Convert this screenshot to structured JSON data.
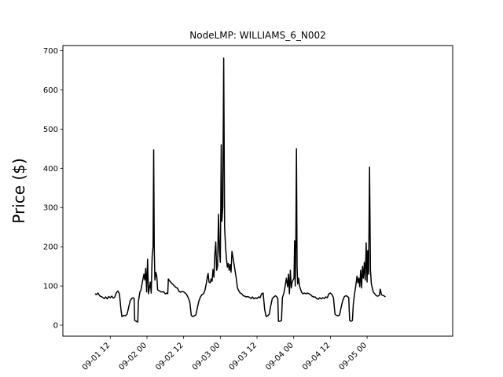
{
  "chart_data": {
    "type": "line",
    "title": "NodeLMP: WILLIAMS_6_N002",
    "xlabel": "",
    "ylabel": "Price ($)",
    "ylim": [
      -28,
      713
    ],
    "xlim_hours": [
      -15.5,
      112
    ],
    "yticks": [
      0,
      100,
      200,
      300,
      400,
      500,
      600,
      700
    ],
    "xticks": [
      {
        "hour": 0,
        "label": "09-01 12"
      },
      {
        "hour": 12,
        "label": "09-02 00"
      },
      {
        "hour": 24,
        "label": "09-02 12"
      },
      {
        "hour": 36,
        "label": "09-03 00"
      },
      {
        "hour": 48,
        "label": "09-03 12"
      },
      {
        "hour": 60,
        "label": "09-04 00"
      },
      {
        "hour": 72,
        "label": "09-04 12"
      },
      {
        "hour": 84,
        "label": "09-05 00"
      }
    ],
    "series": [
      {
        "name": "WILLIAMS_6_N002",
        "color": "#000000",
        "points": [
          [
            -5,
            80
          ],
          [
            -4.5,
            78
          ],
          [
            -4,
            82
          ],
          [
            -3.5,
            75
          ],
          [
            -3,
            73
          ],
          [
            -2.5,
            71
          ],
          [
            -2,
            68
          ],
          [
            -1.5,
            72
          ],
          [
            -1,
            67
          ],
          [
            -0.5,
            73
          ],
          [
            0,
            70
          ],
          [
            0.5,
            74
          ],
          [
            1,
            69
          ],
          [
            1.5,
            72
          ],
          [
            2,
            83
          ],
          [
            2.5,
            87
          ],
          [
            3,
            80
          ],
          [
            3.5,
            40
          ],
          [
            3.8,
            22
          ],
          [
            4.5,
            25
          ],
          [
            5,
            24
          ],
          [
            5.5,
            28
          ],
          [
            6,
            45
          ],
          [
            6.5,
            62
          ],
          [
            7,
            68
          ],
          [
            7.5,
            70
          ],
          [
            7.8,
            68
          ],
          [
            8,
            12
          ],
          [
            8.5,
            10
          ],
          [
            9,
            8
          ],
          [
            9.2,
            60
          ],
          [
            9.7,
            85
          ],
          [
            10,
            88
          ],
          [
            10.5,
            110
          ],
          [
            11,
            130
          ],
          [
            11.3,
            115
          ],
          [
            11.6,
            145
          ],
          [
            11.9,
            85
          ],
          [
            12.2,
            168
          ],
          [
            12.5,
            80
          ],
          [
            12.8,
            95
          ],
          [
            13.1,
            110
          ],
          [
            13.4,
            82
          ],
          [
            13.7,
            175
          ],
          [
            14,
            200
          ],
          [
            14.2,
            447
          ],
          [
            14.4,
            190
          ],
          [
            14.6,
            115
          ],
          [
            14.9,
            135
          ],
          [
            15.2,
            125
          ],
          [
            15.5,
            90
          ],
          [
            16,
            88
          ],
          [
            16.5,
            85
          ],
          [
            17,
            85
          ],
          [
            17.5,
            85
          ],
          [
            18,
            80
          ],
          [
            18.5,
            82
          ],
          [
            18.8,
            80
          ],
          [
            19,
            118
          ],
          [
            19.5,
            112
          ],
          [
            20,
            108
          ],
          [
            20.5,
            104
          ],
          [
            21,
            100
          ],
          [
            21.5,
            96
          ],
          [
            22,
            94
          ],
          [
            22.5,
            86
          ],
          [
            23,
            84
          ],
          [
            23.5,
            86
          ],
          [
            24,
            85
          ],
          [
            24.5,
            82
          ],
          [
            25,
            78
          ],
          [
            25.5,
            70
          ],
          [
            26,
            60
          ],
          [
            26.5,
            25
          ],
          [
            27,
            22
          ],
          [
            27.5,
            24
          ],
          [
            28,
            26
          ],
          [
            28.5,
            45
          ],
          [
            29,
            62
          ],
          [
            29.5,
            72
          ],
          [
            30,
            78
          ],
          [
            30.5,
            80
          ],
          [
            31,
            90
          ],
          [
            31.5,
            110
          ],
          [
            31.8,
            125
          ],
          [
            32,
            132
          ],
          [
            32.3,
            110
          ],
          [
            32.7,
            108
          ],
          [
            33,
            118
          ],
          [
            33.3,
            112
          ],
          [
            33.6,
            142
          ],
          [
            33.9,
            122
          ],
          [
            34.2,
            180
          ],
          [
            34.5,
            212
          ],
          [
            34.8,
            140
          ],
          [
            35.1,
            150
          ],
          [
            35.4,
            283
          ],
          [
            35.7,
            190
          ],
          [
            36,
            160
          ],
          [
            36.3,
            460
          ],
          [
            36.5,
            265
          ],
          [
            36.8,
            300
          ],
          [
            37.1,
            681
          ],
          [
            37.4,
            250
          ],
          [
            37.7,
            200
          ],
          [
            38,
            170
          ],
          [
            38.3,
            148
          ],
          [
            38.6,
            157
          ],
          [
            38.9,
            140
          ],
          [
            39.2,
            155
          ],
          [
            39.5,
            135
          ],
          [
            39.8,
            188
          ],
          [
            40.1,
            175
          ],
          [
            40.4,
            160
          ],
          [
            40.8,
            140
          ],
          [
            41.2,
            120
          ],
          [
            41.6,
            95
          ],
          [
            42,
            88
          ],
          [
            42.5,
            82
          ],
          [
            43,
            80
          ],
          [
            43.5,
            75
          ],
          [
            44,
            74
          ],
          [
            44.5,
            72
          ],
          [
            45,
            73
          ],
          [
            45.5,
            71
          ],
          [
            46,
            68
          ],
          [
            46.5,
            72
          ],
          [
            47,
            67
          ],
          [
            47.5,
            70
          ],
          [
            48,
            68
          ],
          [
            48.5,
            72
          ],
          [
            49,
            70
          ],
          [
            49.5,
            80
          ],
          [
            50,
            82
          ],
          [
            50.5,
            40
          ],
          [
            51,
            22
          ],
          [
            51.5,
            24
          ],
          [
            52,
            28
          ],
          [
            52.5,
            50
          ],
          [
            53,
            68
          ],
          [
            53.5,
            72
          ],
          [
            54,
            75
          ],
          [
            54.5,
            72
          ],
          [
            54.8,
            68
          ],
          [
            55,
            10
          ],
          [
            55.5,
            10
          ],
          [
            56,
            12
          ],
          [
            56.3,
            70
          ],
          [
            56.8,
            82
          ],
          [
            57.2,
            100
          ],
          [
            57.6,
            120
          ],
          [
            58,
            98
          ],
          [
            58.3,
            130
          ],
          [
            58.6,
            80
          ],
          [
            58.9,
            140
          ],
          [
            59.2,
            95
          ],
          [
            59.5,
            110
          ],
          [
            59.8,
            115
          ],
          [
            60.1,
            120
          ],
          [
            60.3,
            215
          ],
          [
            60.5,
            100
          ],
          [
            60.7,
            215
          ],
          [
            60.9,
            450
          ],
          [
            61.1,
            150
          ],
          [
            61.3,
            105
          ],
          [
            61.6,
            120
          ],
          [
            61.9,
            100
          ],
          [
            62.2,
            92
          ],
          [
            62.6,
            84
          ],
          [
            63,
            80
          ],
          [
            63.5,
            82
          ],
          [
            64,
            80
          ],
          [
            64.5,
            82
          ],
          [
            65,
            80
          ],
          [
            65.5,
            78
          ],
          [
            66,
            74
          ],
          [
            66.5,
            72
          ],
          [
            67,
            72
          ],
          [
            67.5,
            68
          ],
          [
            68,
            66
          ],
          [
            68.5,
            70
          ],
          [
            69,
            67
          ],
          [
            69.5,
            70
          ],
          [
            70,
            68
          ],
          [
            70.5,
            72
          ],
          [
            71,
            70
          ],
          [
            71.5,
            80
          ],
          [
            72,
            82
          ],
          [
            72.5,
            78
          ],
          [
            73,
            70
          ],
          [
            73.5,
            28
          ],
          [
            74,
            25
          ],
          [
            74.5,
            24
          ],
          [
            75,
            26
          ],
          [
            75.5,
            45
          ],
          [
            76,
            62
          ],
          [
            76.5,
            72
          ],
          [
            77,
            75
          ],
          [
            77.5,
            74
          ],
          [
            78,
            70
          ],
          [
            78.3,
            12
          ],
          [
            78.8,
            10
          ],
          [
            79.2,
            12
          ],
          [
            79.5,
            55
          ],
          [
            79.9,
            80
          ],
          [
            80.3,
            100
          ],
          [
            80.7,
            125
          ],
          [
            81,
            108
          ],
          [
            81.3,
            120
          ],
          [
            81.6,
            98
          ],
          [
            81.9,
            140
          ],
          [
            82.2,
            95
          ],
          [
            82.5,
            150
          ],
          [
            82.8,
            120
          ],
          [
            83.1,
            160
          ],
          [
            83.4,
            115
          ],
          [
            83.7,
            210
          ],
          [
            84,
            110
          ],
          [
            84.2,
            190
          ],
          [
            84.5,
            130
          ],
          [
            84.8,
            403
          ],
          [
            85.1,
            140
          ],
          [
            85.4,
            105
          ],
          [
            85.7,
            95
          ],
          [
            86,
            85
          ],
          [
            86.5,
            80
          ],
          [
            87,
            75
          ],
          [
            87.5,
            74
          ],
          [
            88,
            76
          ],
          [
            88.3,
            92
          ],
          [
            88.7,
            78
          ],
          [
            89.1,
            76
          ],
          [
            89.5,
            75
          ],
          [
            90,
            72
          ]
        ]
      }
    ]
  }
}
